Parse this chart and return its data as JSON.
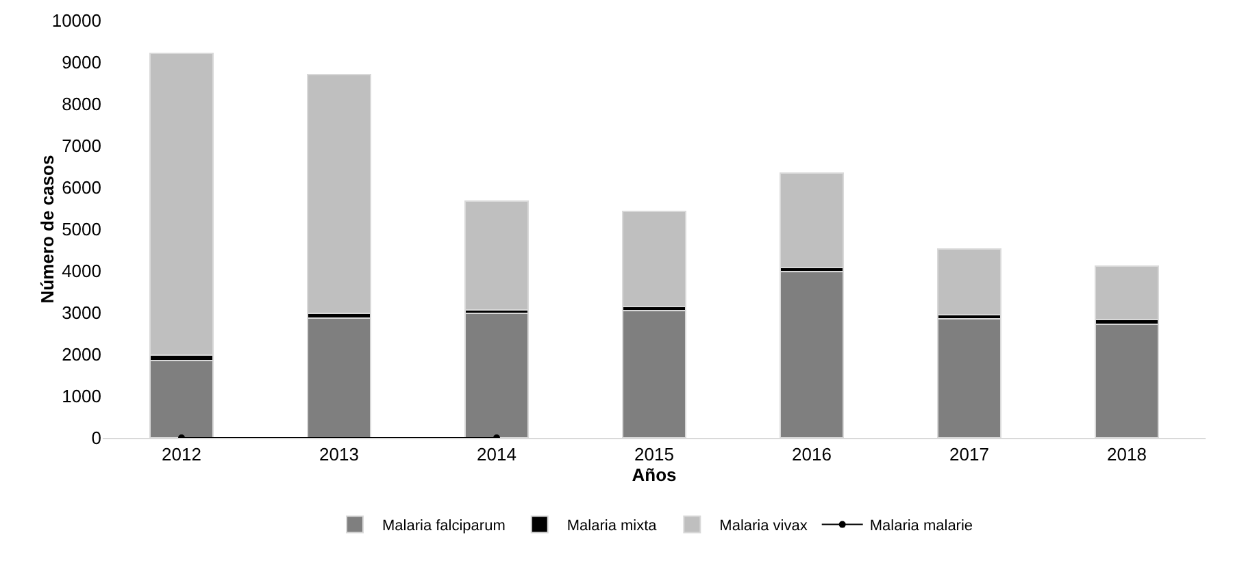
{
  "chart_data": {
    "type": "bar",
    "stacked": true,
    "xlabel": "Años",
    "ylabel": "Número de casos",
    "categories": [
      "2012",
      "2013",
      "2014",
      "2015",
      "2016",
      "2017",
      "2018"
    ],
    "series": [
      {
        "name": "Malaria falciparum",
        "color": "#7f7f7f",
        "values": [
          1850,
          2870,
          2990,
          3050,
          3980,
          2850,
          2720
        ]
      },
      {
        "name": "Malaria mixta",
        "color": "#000000",
        "values": [
          140,
          120,
          80,
          90,
          100,
          100,
          120
        ]
      },
      {
        "name": "Malaria vivax",
        "color": "#bfbfbf",
        "values": [
          7230,
          5710,
          2600,
          2290,
          2260,
          1570,
          1280
        ]
      },
      {
        "name": "Malaria malarie",
        "type": "line",
        "color": "#000000",
        "marker": "circle",
        "values": [
          0,
          null,
          0,
          null,
          null,
          null,
          null
        ]
      }
    ],
    "ylim": [
      0,
      10000
    ],
    "yticks": [
      0,
      1000,
      2000,
      3000,
      4000,
      5000,
      6000,
      7000,
      8000,
      9000,
      10000
    ],
    "grid": false,
    "legend": "bottom"
  }
}
